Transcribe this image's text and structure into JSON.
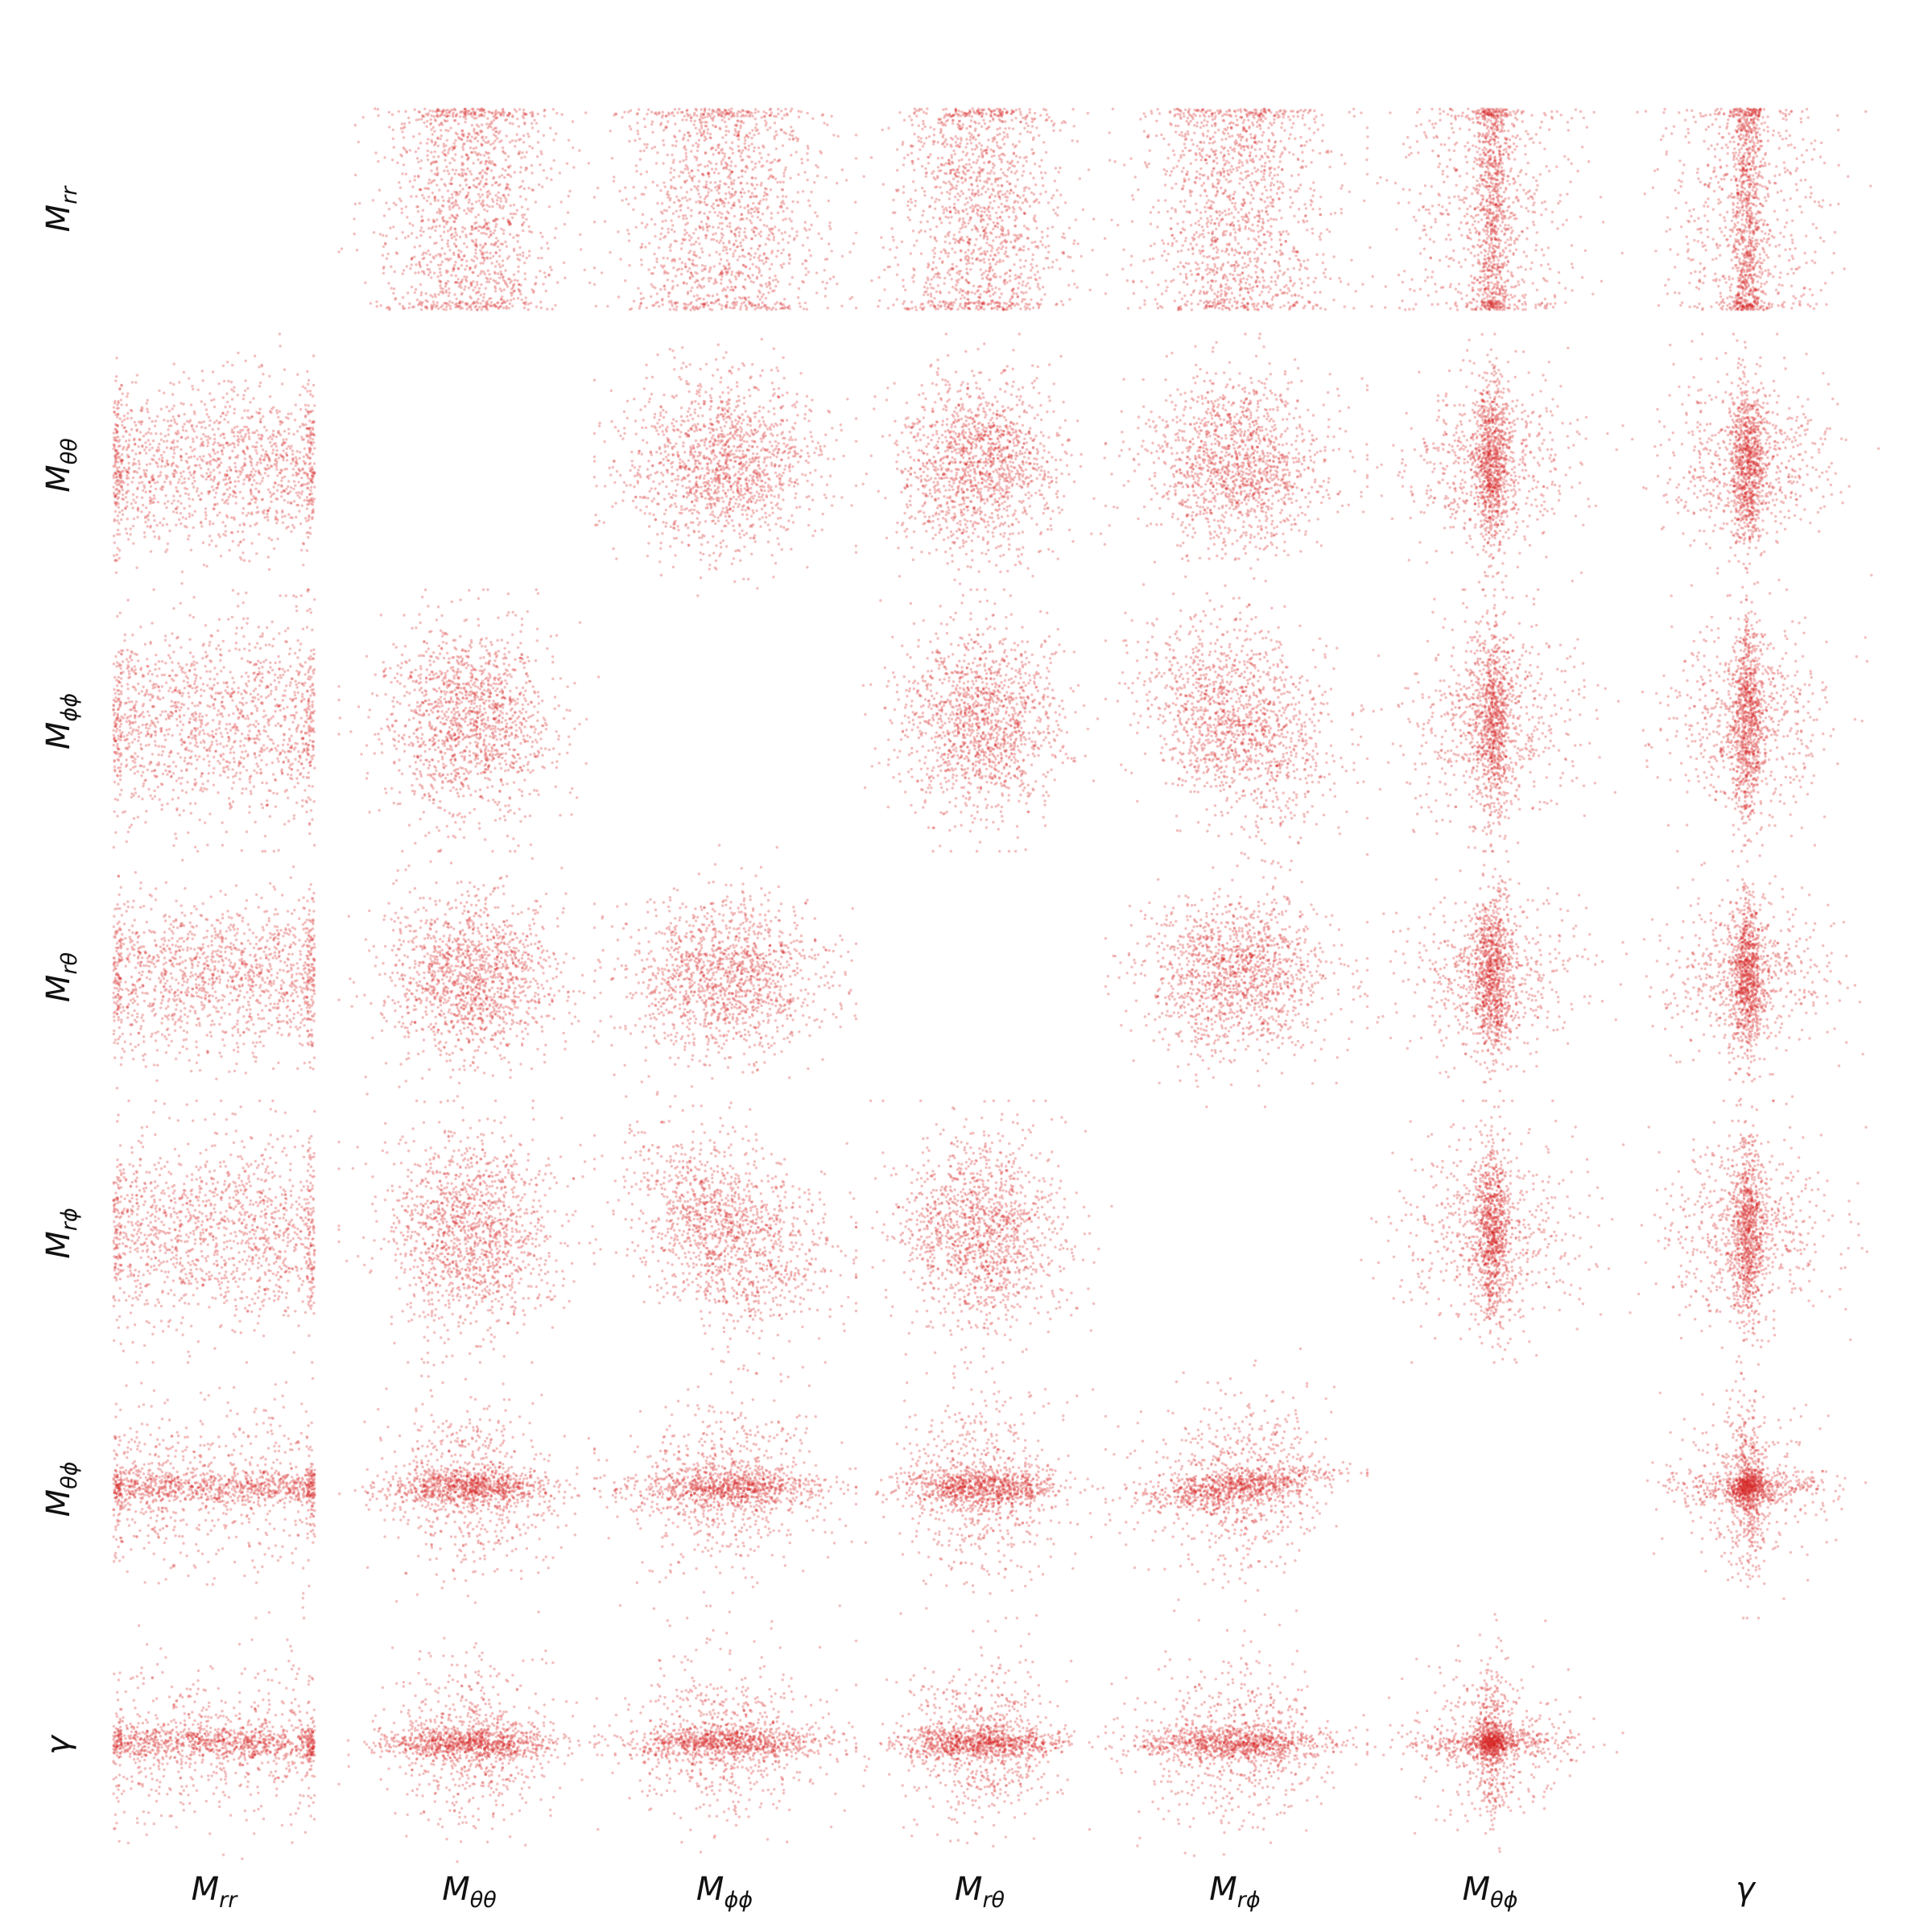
{
  "chart_data": {
    "type": "scatter",
    "layout": "pair-plot matrix, upper and lower triangles, empty diagonal",
    "variables": [
      {
        "id": "Mrr",
        "base": "M",
        "sub": "rr"
      },
      {
        "id": "Mtt",
        "base": "M",
        "sub": "θθ"
      },
      {
        "id": "Mpp",
        "base": "M",
        "sub": "ϕϕ"
      },
      {
        "id": "Mrt",
        "base": "M",
        "sub": "rθ"
      },
      {
        "id": "Mrp",
        "base": "M",
        "sub": "rϕ"
      },
      {
        "id": "Mtp",
        "base": "M",
        "sub": "θϕ"
      },
      {
        "id": "gamma",
        "base": "γ",
        "sub": ""
      }
    ],
    "point_color": "#d62728",
    "point_opacity": 0.3,
    "points_per_panel": 1400,
    "grid": false,
    "axes_visible": false,
    "diagonal": "empty"
  }
}
